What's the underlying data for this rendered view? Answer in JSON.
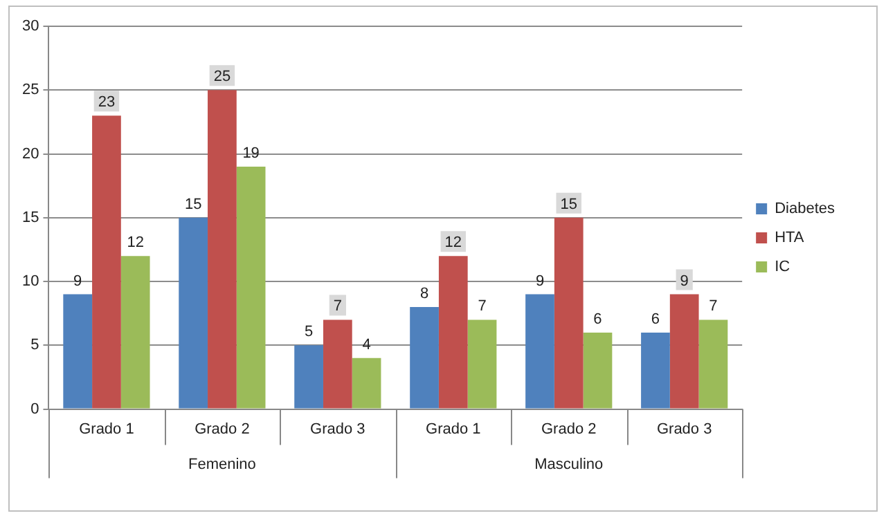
{
  "chart_data": {
    "type": "bar",
    "categories": [
      "Grado 1",
      "Grado 2",
      "Grado 3",
      "Grado 1",
      "Grado 2",
      "Grado 3"
    ],
    "series": [
      {
        "name": "Diabetes",
        "color": "#4f81bd",
        "values": [
          9,
          15,
          5,
          8,
          9,
          6
        ]
      },
      {
        "name": "HTA",
        "color": "#c0504d",
        "values": [
          23,
          25,
          7,
          12,
          15,
          9
        ]
      },
      {
        "name": "IC",
        "color": "#9bbb59",
        "values": [
          12,
          19,
          4,
          7,
          6,
          7
        ]
      }
    ],
    "annotations": [
      "Femenino",
      "Masculino"
    ],
    "ylim": [
      0,
      30
    ],
    "yticks": [
      0,
      5,
      10,
      15,
      20,
      25,
      30
    ],
    "grid": "y",
    "legend": "right",
    "data_labels": true
  }
}
